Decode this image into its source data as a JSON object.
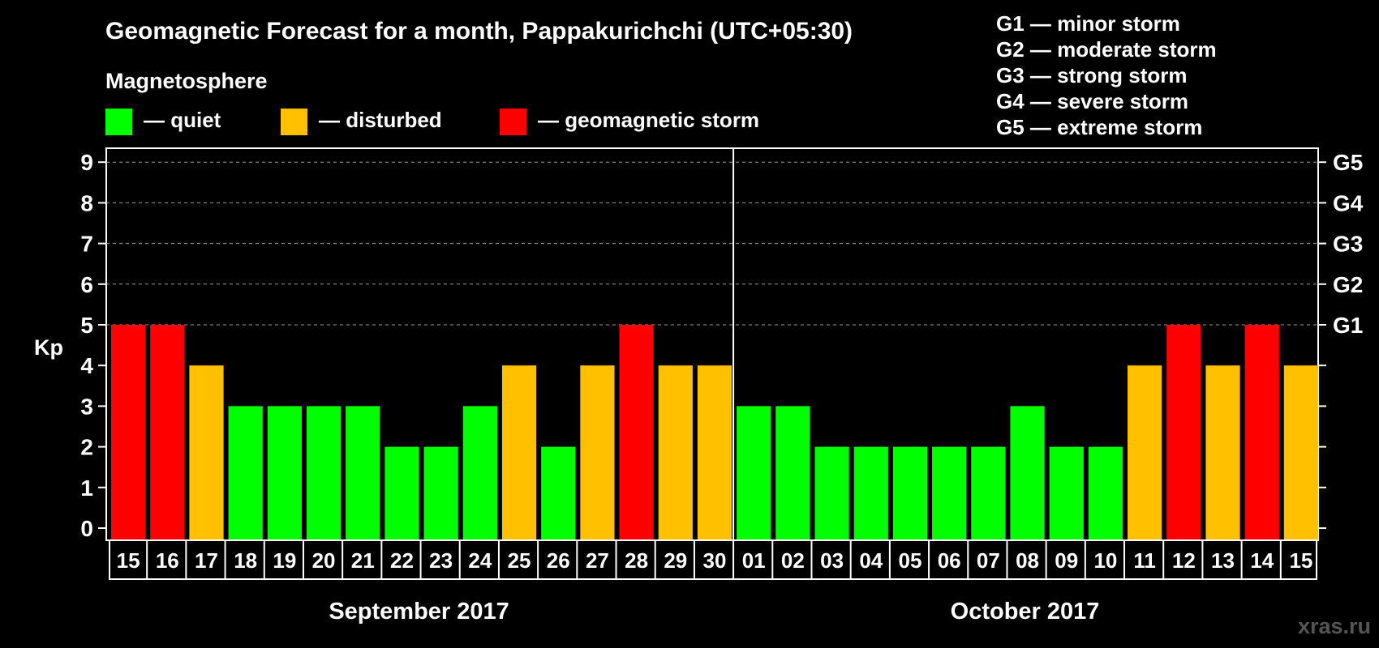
{
  "title": "Geomagnetic Forecast for a month, Pappakurichchi (UTC+05:30)",
  "legend": {
    "heading": "Magnetosphere",
    "items": [
      {
        "label": "— quiet",
        "color": "#00ff00"
      },
      {
        "label": "— disturbed",
        "color": "#ffc000"
      },
      {
        "label": "— geomagnetic storm",
        "color": "#ff0000"
      }
    ]
  },
  "storm_levels": [
    "G1 — minor storm",
    "G2 — moderate storm",
    "G3 — strong storm",
    "G4 — severe storm",
    "G5 — extreme storm"
  ],
  "watermark": "xras.ru",
  "chart_data": {
    "type": "bar",
    "ylabel": "Kp",
    "ylim": [
      0,
      9
    ],
    "yticks": [
      "0",
      "1",
      "2",
      "3",
      "4",
      "5",
      "6",
      "7",
      "8",
      "9"
    ],
    "right_axis_ticks": [
      {
        "value": 5,
        "label": "G1"
      },
      {
        "value": 6,
        "label": "G2"
      },
      {
        "value": 7,
        "label": "G3"
      },
      {
        "value": 8,
        "label": "G4"
      },
      {
        "value": 9,
        "label": "G5"
      }
    ],
    "grid": "dashed at Kp 5-9",
    "categories": [
      "15",
      "16",
      "17",
      "18",
      "19",
      "20",
      "21",
      "22",
      "23",
      "24",
      "25",
      "26",
      "27",
      "28",
      "29",
      "30",
      "01",
      "02",
      "03",
      "04",
      "05",
      "06",
      "07",
      "08",
      "09",
      "10",
      "11",
      "12",
      "13",
      "14",
      "15"
    ],
    "values": [
      5,
      5,
      4,
      3,
      3,
      3,
      3,
      2,
      2,
      3,
      4,
      2,
      4,
      5,
      4,
      4,
      3,
      3,
      2,
      2,
      2,
      2,
      2,
      3,
      2,
      2,
      4,
      5,
      4,
      5,
      4
    ],
    "colors": {
      "quiet": "#00ff00",
      "disturbed": "#ffc000",
      "storm": "#ff0000"
    },
    "months": [
      {
        "label": "September 2017",
        "start_index": 0,
        "count": 16
      },
      {
        "label": "October 2017",
        "start_index": 16,
        "count": 15
      }
    ]
  }
}
